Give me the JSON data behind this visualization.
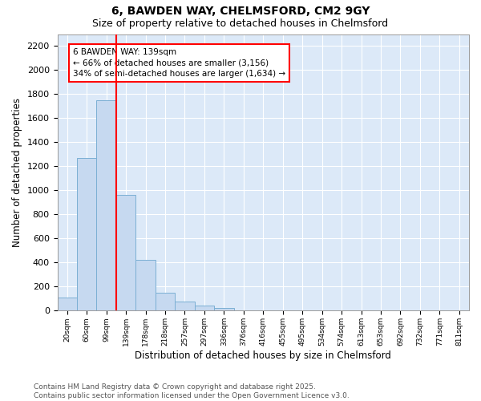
{
  "title1": "6, BAWDEN WAY, CHELMSFORD, CM2 9GY",
  "title2": "Size of property relative to detached houses in Chelmsford",
  "xlabel": "Distribution of detached houses by size in Chelmsford",
  "ylabel": "Number of detached properties",
  "footnote1": "Contains HM Land Registry data © Crown copyright and database right 2025.",
  "footnote2": "Contains public sector information licensed under the Open Government Licence v3.0.",
  "annotation_line1": "6 BAWDEN WAY: 139sqm",
  "annotation_line2": "← 66% of detached houses are smaller (3,156)",
  "annotation_line3": "34% of semi-detached houses are larger (1,634) →",
  "bar_color": "#c6d9f0",
  "bar_edge_color": "#7bafd4",
  "redline_index": 3,
  "categories": [
    "20sqm",
    "60sqm",
    "99sqm",
    "139sqm",
    "178sqm",
    "218sqm",
    "257sqm",
    "297sqm",
    "336sqm",
    "376sqm",
    "416sqm",
    "455sqm",
    "495sqm",
    "534sqm",
    "574sqm",
    "613sqm",
    "653sqm",
    "692sqm",
    "732sqm",
    "771sqm",
    "811sqm"
  ],
  "values": [
    110,
    1270,
    1750,
    960,
    420,
    150,
    75,
    40,
    20,
    0,
    0,
    0,
    0,
    0,
    0,
    0,
    0,
    0,
    0,
    0,
    0
  ],
  "ylim": [
    0,
    2300
  ],
  "yticks": [
    0,
    200,
    400,
    600,
    800,
    1000,
    1200,
    1400,
    1600,
    1800,
    2000,
    2200
  ],
  "background_color": "#dce9f8",
  "grid_color": "#ffffff",
  "title1_fontsize": 10,
  "title2_fontsize": 9,
  "footnote_fontsize": 6.5,
  "annotation_fontsize": 7.5
}
